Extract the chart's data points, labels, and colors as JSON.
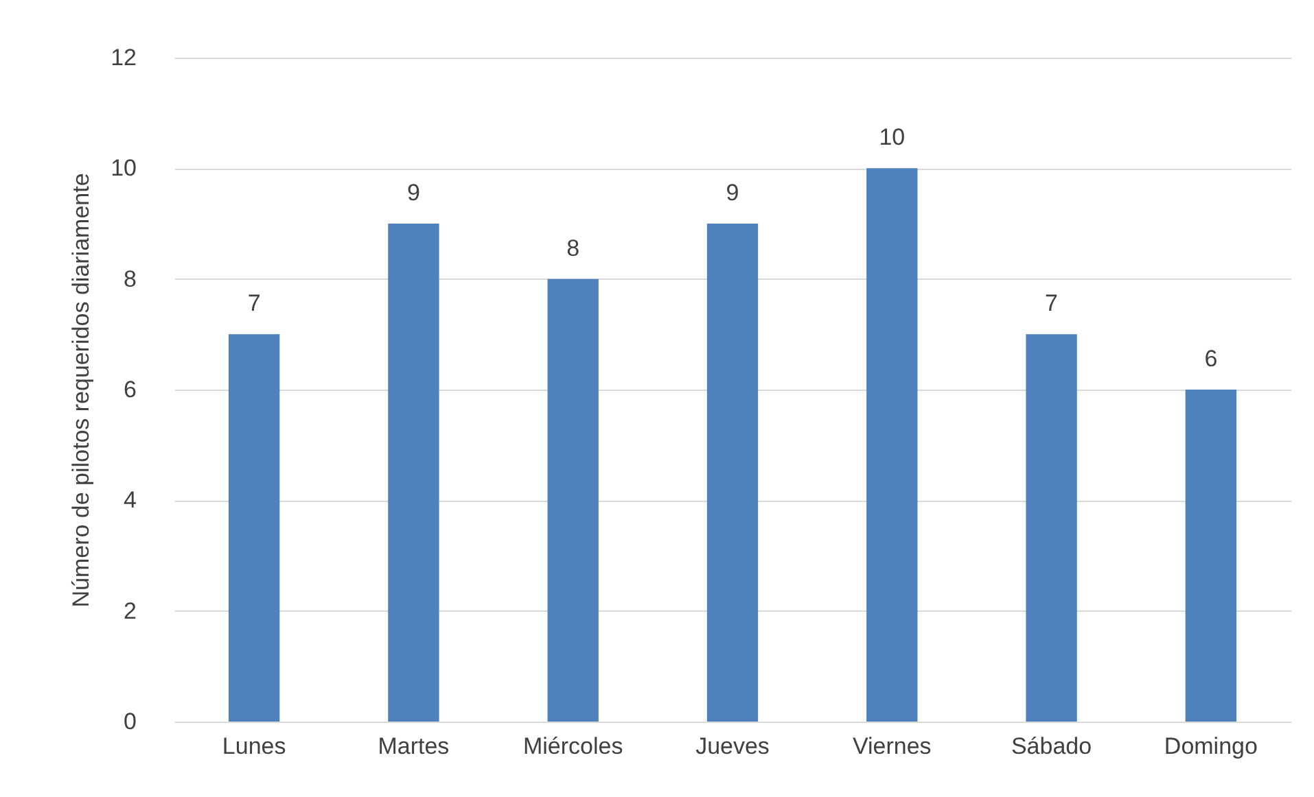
{
  "chart_data": {
    "type": "bar",
    "ylabel": "Número de pilotos requeridos diariamente",
    "categories": [
      "Lunes",
      "Martes",
      "Miércoles",
      "Jueves",
      "Viernes",
      "Sábado",
      "Domingo"
    ],
    "values": [
      7,
      9,
      8,
      9,
      10,
      7,
      6
    ],
    "color": "#4f81bd",
    "ylim": [
      0,
      12
    ],
    "yticks": [
      0,
      2,
      4,
      6,
      8,
      10,
      12
    ],
    "grid": "y",
    "data_labels": true
  }
}
